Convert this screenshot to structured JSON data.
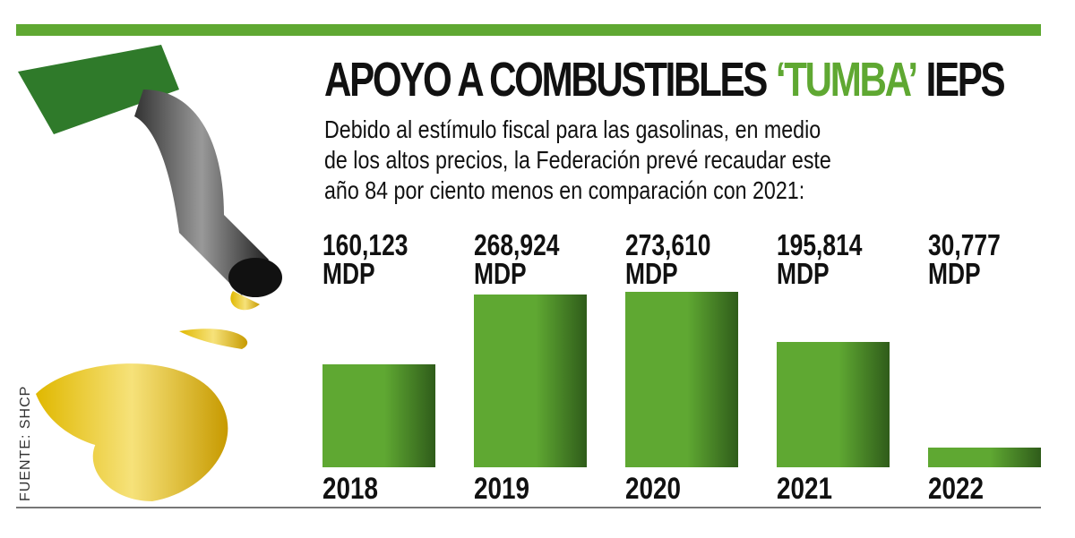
{
  "chart_data": {
    "type": "bar",
    "title_parts": [
      "APOYO A COMBUSTIBLES",
      "‘TUMBA’",
      "IEPS"
    ],
    "subtitle": "Debido al estímulo fiscal para las gasolinas, en medio de los altos precios, la Federación prevé recaudar este año 84 por ciento menos en comparación con 2021:",
    "source": "FUENTE: SHCP",
    "categories": [
      "2018",
      "2019",
      "2020",
      "2021",
      "2022"
    ],
    "values": [
      160123,
      268924,
      273610,
      195814,
      30777
    ],
    "value_labels": [
      "160,123 MDP",
      "268,924 MDP",
      "273,610 MDP",
      "195,814 MDP",
      "30,777 MDP"
    ],
    "color": "#5fa832",
    "ylim": [
      0,
      300000
    ]
  }
}
